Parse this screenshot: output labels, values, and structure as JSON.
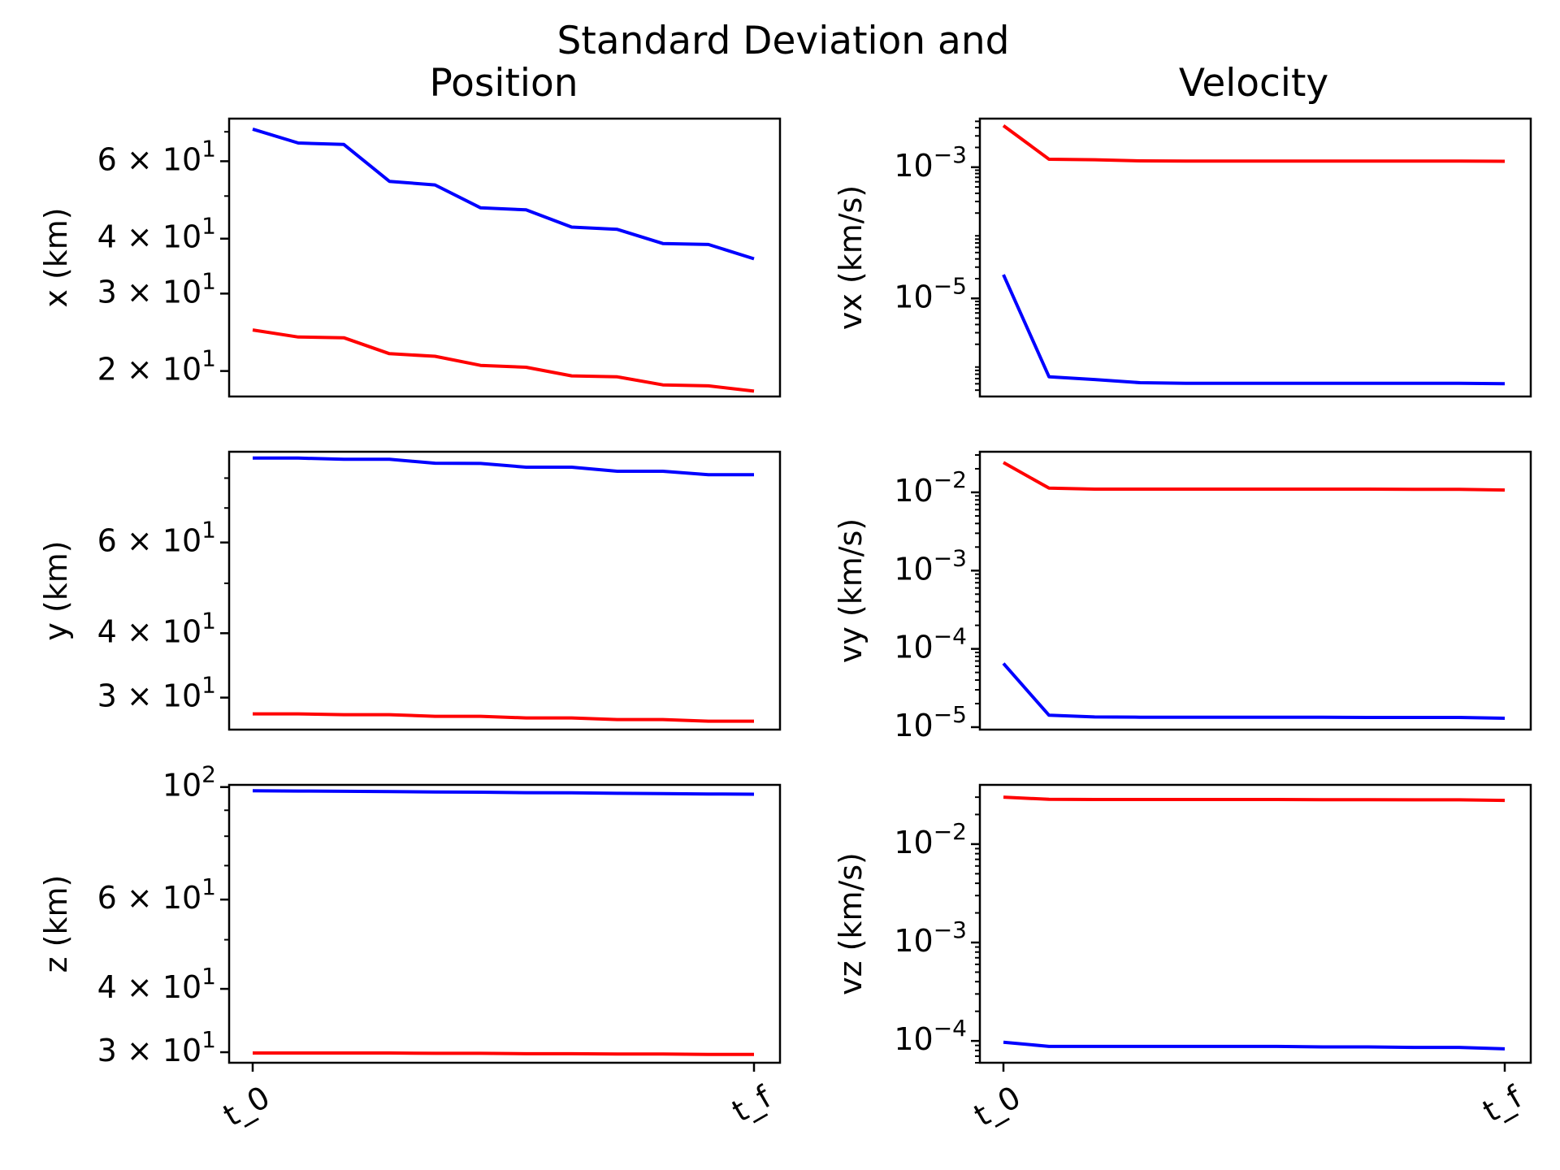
{
  "title": "Standard Deviation and",
  "column_titles": [
    "Position",
    "Velocity"
  ],
  "x_tick_labels": [
    "t_0",
    "t_f"
  ],
  "colors": {
    "blue": "#0000ff",
    "red": "#ff0000"
  },
  "chart_data": [
    {
      "type": "line",
      "ylabel": "x (km)",
      "yscale": "log",
      "ylim": [
        17.5,
        75
      ],
      "y_ticks": [
        {
          "value": 20,
          "label": "2 × 10^1"
        },
        {
          "value": 30,
          "label": "3 × 10^1"
        },
        {
          "value": 40,
          "label": "4 × 10^1"
        },
        {
          "value": 60,
          "label": "6 × 10^1"
        }
      ],
      "x": [
        0,
        1,
        2,
        3,
        4,
        5,
        6,
        7,
        8,
        9,
        10,
        11
      ],
      "series": [
        {
          "color": "#0000ff",
          "values": [
            71,
            66,
            65.5,
            54,
            53,
            47,
            46.5,
            42.5,
            42,
            39,
            38.8,
            36
          ]
        },
        {
          "color": "#ff0000",
          "values": [
            24.8,
            23.9,
            23.8,
            21.9,
            21.6,
            20.6,
            20.4,
            19.5,
            19.4,
            18.6,
            18.5,
            18
          ]
        }
      ]
    },
    {
      "type": "line",
      "ylabel": "vx (km/s)",
      "yscale": "log",
      "ylim": [
        3.2e-07,
        0.0055
      ],
      "y_ticks": [
        {
          "value": 1e-05,
          "label": "10^-5"
        },
        {
          "value": 0.001,
          "label": "10^-3"
        }
      ],
      "x": [
        0,
        1,
        2,
        3,
        4,
        5,
        6,
        7,
        8,
        9,
        10,
        11
      ],
      "series": [
        {
          "color": "#ff0000",
          "values": [
            0.0043,
            0.00132,
            0.0013,
            0.00125,
            0.00124,
            0.00124,
            0.00124,
            0.00124,
            0.00124,
            0.00124,
            0.00124,
            0.00123
          ]
        },
        {
          "color": "#0000ff",
          "values": [
            2.3e-05,
            6.4e-07,
            5.8e-07,
            5.2e-07,
            5.1e-07,
            5.1e-07,
            5.1e-07,
            5.1e-07,
            5.1e-07,
            5.1e-07,
            5.1e-07,
            5e-07
          ]
        }
      ]
    },
    {
      "type": "line",
      "ylabel": "y (km)",
      "yscale": "log",
      "ylim": [
        26,
        90
      ],
      "y_ticks": [
        {
          "value": 30,
          "label": "3 × 10^1"
        },
        {
          "value": 40,
          "label": "4 × 10^1"
        },
        {
          "value": 60,
          "label": "6 × 10^1"
        }
      ],
      "x": [
        0,
        1,
        2,
        3,
        4,
        5,
        6,
        7,
        8,
        9,
        10,
        11
      ],
      "series": [
        {
          "color": "#0000ff",
          "values": [
            87.5,
            87.5,
            87,
            87,
            85.5,
            85.4,
            84,
            84,
            82.5,
            82.5,
            81.2,
            81.2
          ]
        },
        {
          "color": "#ff0000",
          "values": [
            27.9,
            27.9,
            27.8,
            27.8,
            27.6,
            27.6,
            27.4,
            27.4,
            27.2,
            27.2,
            27.0,
            27.0
          ]
        }
      ]
    },
    {
      "type": "line",
      "ylabel": "vy (km/s)",
      "yscale": "log",
      "ylim": [
        9.3e-06,
        0.033
      ],
      "y_ticks": [
        {
          "value": 1e-05,
          "label": "10^-5"
        },
        {
          "value": 0.0001,
          "label": "10^-4"
        },
        {
          "value": 0.001,
          "label": "10^-3"
        },
        {
          "value": 0.01,
          "label": "10^-2"
        }
      ],
      "x": [
        0,
        1,
        2,
        3,
        4,
        5,
        6,
        7,
        8,
        9,
        10,
        11
      ],
      "series": [
        {
          "color": "#ff0000",
          "values": [
            0.024,
            0.0113,
            0.011,
            0.011,
            0.011,
            0.011,
            0.011,
            0.011,
            0.011,
            0.0109,
            0.0109,
            0.0107
          ]
        },
        {
          "color": "#0000ff",
          "values": [
            6.5e-05,
            1.42e-05,
            1.35e-05,
            1.34e-05,
            1.34e-05,
            1.34e-05,
            1.34e-05,
            1.34e-05,
            1.33e-05,
            1.33e-05,
            1.33e-05,
            1.3e-05
          ]
        }
      ]
    },
    {
      "type": "line",
      "ylabel": "z (km)",
      "yscale": "log",
      "ylim": [
        28.6,
        101
      ],
      "y_ticks": [
        {
          "value": 30,
          "label": "3 × 10^1"
        },
        {
          "value": 40,
          "label": "4 × 10^1"
        },
        {
          "value": 60,
          "label": "6 × 10^1"
        },
        {
          "value": 100,
          "label": "10^2"
        }
      ],
      "x": [
        0,
        1,
        2,
        3,
        4,
        5,
        6,
        7,
        8,
        9,
        10,
        11
      ],
      "series": [
        {
          "color": "#0000ff",
          "values": [
            98.3,
            98.2,
            98.1,
            98.0,
            97.8,
            97.7,
            97.5,
            97.4,
            97.2,
            97.1,
            96.9,
            96.8
          ]
        },
        {
          "color": "#ff0000",
          "values": [
            29.9,
            29.9,
            29.9,
            29.9,
            29.85,
            29.85,
            29.8,
            29.8,
            29.75,
            29.75,
            29.7,
            29.7
          ]
        }
      ]
    },
    {
      "type": "line",
      "ylabel": "vz (km/s)",
      "yscale": "log",
      "ylim": [
        6e-05,
        0.04
      ],
      "y_ticks": [
        {
          "value": 0.0001,
          "label": "10^-4"
        },
        {
          "value": 0.001,
          "label": "10^-3"
        },
        {
          "value": 0.01,
          "label": "10^-2"
        }
      ],
      "x": [
        0,
        1,
        2,
        3,
        4,
        5,
        6,
        7,
        8,
        9,
        10,
        11
      ],
      "series": [
        {
          "color": "#ff0000",
          "values": [
            0.03,
            0.0285,
            0.0284,
            0.0284,
            0.0284,
            0.0284,
            0.0284,
            0.0283,
            0.0283,
            0.0282,
            0.0282,
            0.0278
          ]
        },
        {
          "color": "#0000ff",
          "values": [
            9.7e-05,
            8.8e-05,
            8.8e-05,
            8.8e-05,
            8.8e-05,
            8.8e-05,
            8.8e-05,
            8.7e-05,
            8.7e-05,
            8.6e-05,
            8.6e-05,
            8.3e-05
          ]
        }
      ]
    }
  ]
}
